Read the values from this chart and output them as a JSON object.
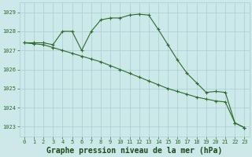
{
  "line1_x": [
    0,
    1,
    2,
    3,
    4,
    5,
    6,
    7,
    8,
    9,
    10,
    11,
    12,
    13,
    14,
    15,
    16,
    17,
    18,
    19,
    20,
    21,
    22,
    23
  ],
  "line1_y": [
    1027.4,
    1027.4,
    1027.4,
    1027.3,
    1028.0,
    1028.0,
    1027.0,
    1028.0,
    1028.6,
    1028.7,
    1028.7,
    1028.85,
    1028.9,
    1028.85,
    1028.1,
    1027.3,
    1026.5,
    1025.8,
    1025.3,
    1024.8,
    1024.85,
    1024.8,
    1023.2,
    1022.95
  ],
  "line2_x": [
    0,
    1,
    2,
    3,
    4,
    5,
    6,
    7,
    8,
    9,
    10,
    11,
    12,
    13,
    14,
    15,
    16,
    17,
    18,
    19,
    20,
    21,
    22,
    23
  ],
  "line2_y": [
    1027.4,
    1027.35,
    1027.3,
    1027.15,
    1027.0,
    1026.85,
    1026.7,
    1026.55,
    1026.4,
    1026.2,
    1026.0,
    1025.8,
    1025.6,
    1025.4,
    1025.2,
    1025.0,
    1024.85,
    1024.7,
    1024.55,
    1024.45,
    1024.35,
    1024.3,
    1023.2,
    1022.95
  ],
  "line_color": "#2d6a2d",
  "background_color": "#cce8e8",
  "grid_color": "#aacece",
  "xlabel": "Graphe pression niveau de la mer (hPa)",
  "xlabel_color": "#1a4a1a",
  "xlim": [
    -0.5,
    23.5
  ],
  "ylim": [
    1022.5,
    1029.5
  ],
  "yticks": [
    1023,
    1024,
    1025,
    1026,
    1027,
    1028,
    1029
  ],
  "xticks": [
    0,
    1,
    2,
    3,
    4,
    5,
    6,
    7,
    8,
    9,
    10,
    11,
    12,
    13,
    14,
    15,
    16,
    17,
    18,
    19,
    20,
    21,
    22,
    23
  ],
  "tick_fontsize": 5.0,
  "xlabel_fontsize": 7.0,
  "marker": "+",
  "markersize": 3.5,
  "linewidth": 0.8
}
